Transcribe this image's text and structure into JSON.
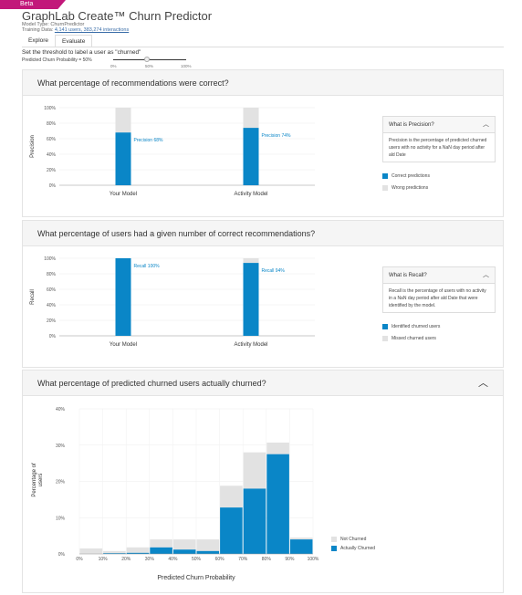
{
  "header": {
    "beta": "Beta",
    "title": "GraphLab Create™ Churn Predictor",
    "model_type": "Model Type: ChurnPredictor",
    "training_prefix": "Training Data:",
    "training_link": "4,141 users, 383,274 interactions"
  },
  "tabs": [
    {
      "label": "Explore"
    },
    {
      "label": "Evaluate"
    }
  ],
  "threshold": {
    "label": "Set the threshold to label a user as \"churned\"",
    "value_text": "Predicted Churn Probability = 50%",
    "ticks": [
      "0%",
      "50%",
      "100%"
    ],
    "value": 0.5
  },
  "colors": {
    "blue": "#0a86c7",
    "gray": "#e2e2e2"
  },
  "precision_panel": {
    "title": "What percentage of recommendations were correct?",
    "info_title": "What is Precision?",
    "info_text": "Precision is the percentage of predicted churned users with no activity for a NaN day period after ald Date",
    "legend": [
      "Correct predictions",
      "Wrong predictions"
    ]
  },
  "recall_panel": {
    "title": "What percentage of users had a given number of correct recommendations?",
    "info_title": "What is Recall?",
    "info_text": "Recall is the percentage of users with no activity in a NaN day period after ald Date that were identified by the model.",
    "legend": [
      "Identified churned users",
      "Missed churned users"
    ]
  },
  "histogram_panel": {
    "title": "What percentage of predicted churned users actually churned?",
    "legend": [
      "Not Churned",
      "Actually Churned"
    ]
  },
  "chart_data": [
    {
      "type": "bar",
      "ylabel": "Precision",
      "categories": [
        "Your Model",
        "Activity Model"
      ],
      "y_ticks": [
        "0%",
        "20%",
        "40%",
        "60%",
        "80%",
        "100%"
      ],
      "ylim": [
        0,
        100
      ],
      "series": [
        {
          "name": "Correct predictions",
          "values": [
            68,
            74
          ]
        },
        {
          "name": "Wrong predictions",
          "values": [
            32,
            26
          ]
        }
      ],
      "labels": [
        "Precision 68%",
        "Precision 74%"
      ]
    },
    {
      "type": "bar",
      "ylabel": "Recall",
      "categories": [
        "Your Model",
        "Activity Model"
      ],
      "y_ticks": [
        "0%",
        "20%",
        "40%",
        "60%",
        "80%",
        "100%"
      ],
      "ylim": [
        0,
        100
      ],
      "series": [
        {
          "name": "Identified churned users",
          "values": [
            100,
            94
          ]
        },
        {
          "name": "Missed churned users",
          "values": [
            0,
            6
          ]
        }
      ],
      "labels": [
        "Recall 100%",
        "Recall 94%"
      ]
    },
    {
      "type": "bar",
      "xlabel": "Predicted Churn Probability",
      "ylabel": "Percentage of users",
      "x_ticks": [
        "0%",
        "10%",
        "20%",
        "30%",
        "40%",
        "50%",
        "60%",
        "70%",
        "80%",
        "90%",
        "100%"
      ],
      "y_ticks": [
        "0%",
        "10%",
        "20%",
        "30%",
        "40%"
      ],
      "ylim": [
        0,
        40
      ],
      "bins": [
        "0-10%",
        "10-20%",
        "20-30%",
        "30-40%",
        "40-50%",
        "50-60%",
        "60-70%",
        "70-80%",
        "80-90%",
        "90-100%"
      ],
      "series": [
        {
          "name": "Actually Churned",
          "values": [
            0,
            0.2,
            0.3,
            1.8,
            1.2,
            0.8,
            12.8,
            18,
            27.5,
            4
          ]
        },
        {
          "name": "Not Churned",
          "values": [
            1.5,
            0.6,
            1.5,
            2.2,
            2.8,
            3.2,
            6,
            10,
            3.2,
            0.5
          ]
        }
      ]
    }
  ]
}
